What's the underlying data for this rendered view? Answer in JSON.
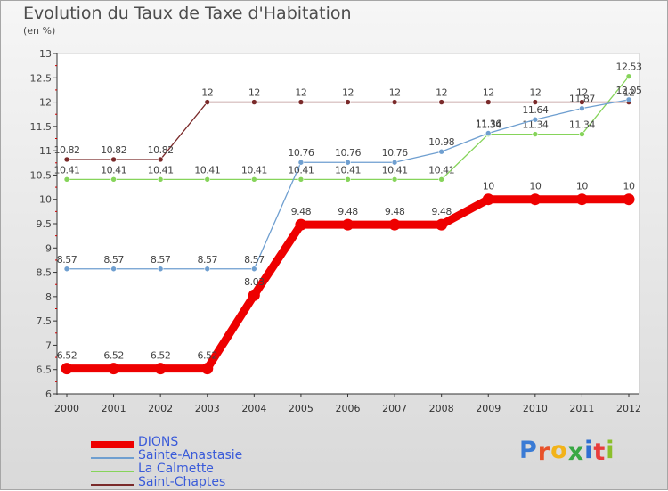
{
  "header": {
    "title": "Evolution du Taux de Taxe d'Habitation",
    "unit": "(en %)"
  },
  "logo": {
    "text": "Proxiti",
    "letter_colors": [
      "#3a7bd5",
      "#e8522a",
      "#f2b319",
      "#39a845",
      "#2f6fd2",
      "#e83d3d",
      "#8bbf2c"
    ]
  },
  "chart_data": {
    "type": "line",
    "title": "Evolution du Taux de Taxe d'Habitation",
    "ylabel": "(en %)",
    "xlabel": "",
    "x": [
      "2000",
      "2001",
      "2002",
      "2003",
      "2004",
      "2005",
      "2006",
      "2007",
      "2008",
      "2009",
      "2010",
      "2011",
      "2012"
    ],
    "ylim": [
      6,
      13
    ],
    "yticks": [
      "6",
      "6.5",
      "7",
      "7.5",
      "8",
      "8.5",
      "9",
      "9.5",
      "10",
      "10.5",
      "11",
      "11.5",
      "12",
      "12.5",
      "13"
    ],
    "grid": false,
    "legend": "bottom-left",
    "series": [
      {
        "name": "Saint-Chaptes",
        "color": "#7a2a2a",
        "values": [
          10.82,
          10.82,
          10.82,
          12,
          12,
          12,
          12,
          12,
          12,
          12,
          12,
          12,
          12
        ],
        "labels": [
          "10.82",
          "10.82",
          "10.82",
          "12",
          "12",
          "12",
          "12",
          "12",
          "12",
          "12",
          "12",
          "12",
          "12"
        ]
      },
      {
        "name": "La Calmette",
        "color": "#86d45a",
        "values": [
          10.41,
          10.41,
          10.41,
          10.41,
          10.41,
          10.41,
          10.41,
          10.41,
          10.41,
          11.34,
          11.34,
          11.34,
          12.53
        ],
        "labels": [
          "10.41",
          "10.41",
          "10.41",
          "10.41",
          "10.41",
          "10.41",
          "10.41",
          "10.41",
          "10.41",
          "11.34",
          "11.34",
          "11.34",
          "12.53"
        ]
      },
      {
        "name": "Sainte-Anastasie",
        "color": "#6f9fd0",
        "values": [
          8.57,
          8.57,
          8.57,
          8.57,
          8.57,
          10.76,
          10.76,
          10.76,
          10.98,
          11.36,
          11.64,
          11.87,
          12.05
        ],
        "labels": [
          "8.57",
          "8.57",
          "8.57",
          "8.57",
          "8.57",
          "10.76",
          "10.76",
          "10.76",
          "10.98",
          "11.36",
          "11.64",
          "11.87",
          "12.05"
        ]
      },
      {
        "name": "DIONS",
        "color": "#ee0000",
        "values": [
          6.52,
          6.52,
          6.52,
          6.52,
          8.03,
          9.48,
          9.48,
          9.48,
          9.48,
          10,
          10,
          10,
          10
        ],
        "labels": [
          "6.52",
          "6.52",
          "6.52",
          "6.52",
          "8.03",
          "9.48",
          "9.48",
          "9.48",
          "9.48",
          "10",
          "10",
          "10",
          "10"
        ]
      }
    ],
    "legend_order": [
      "DIONS",
      "Sainte-Anastasie",
      "La Calmette",
      "Saint-Chaptes"
    ]
  }
}
